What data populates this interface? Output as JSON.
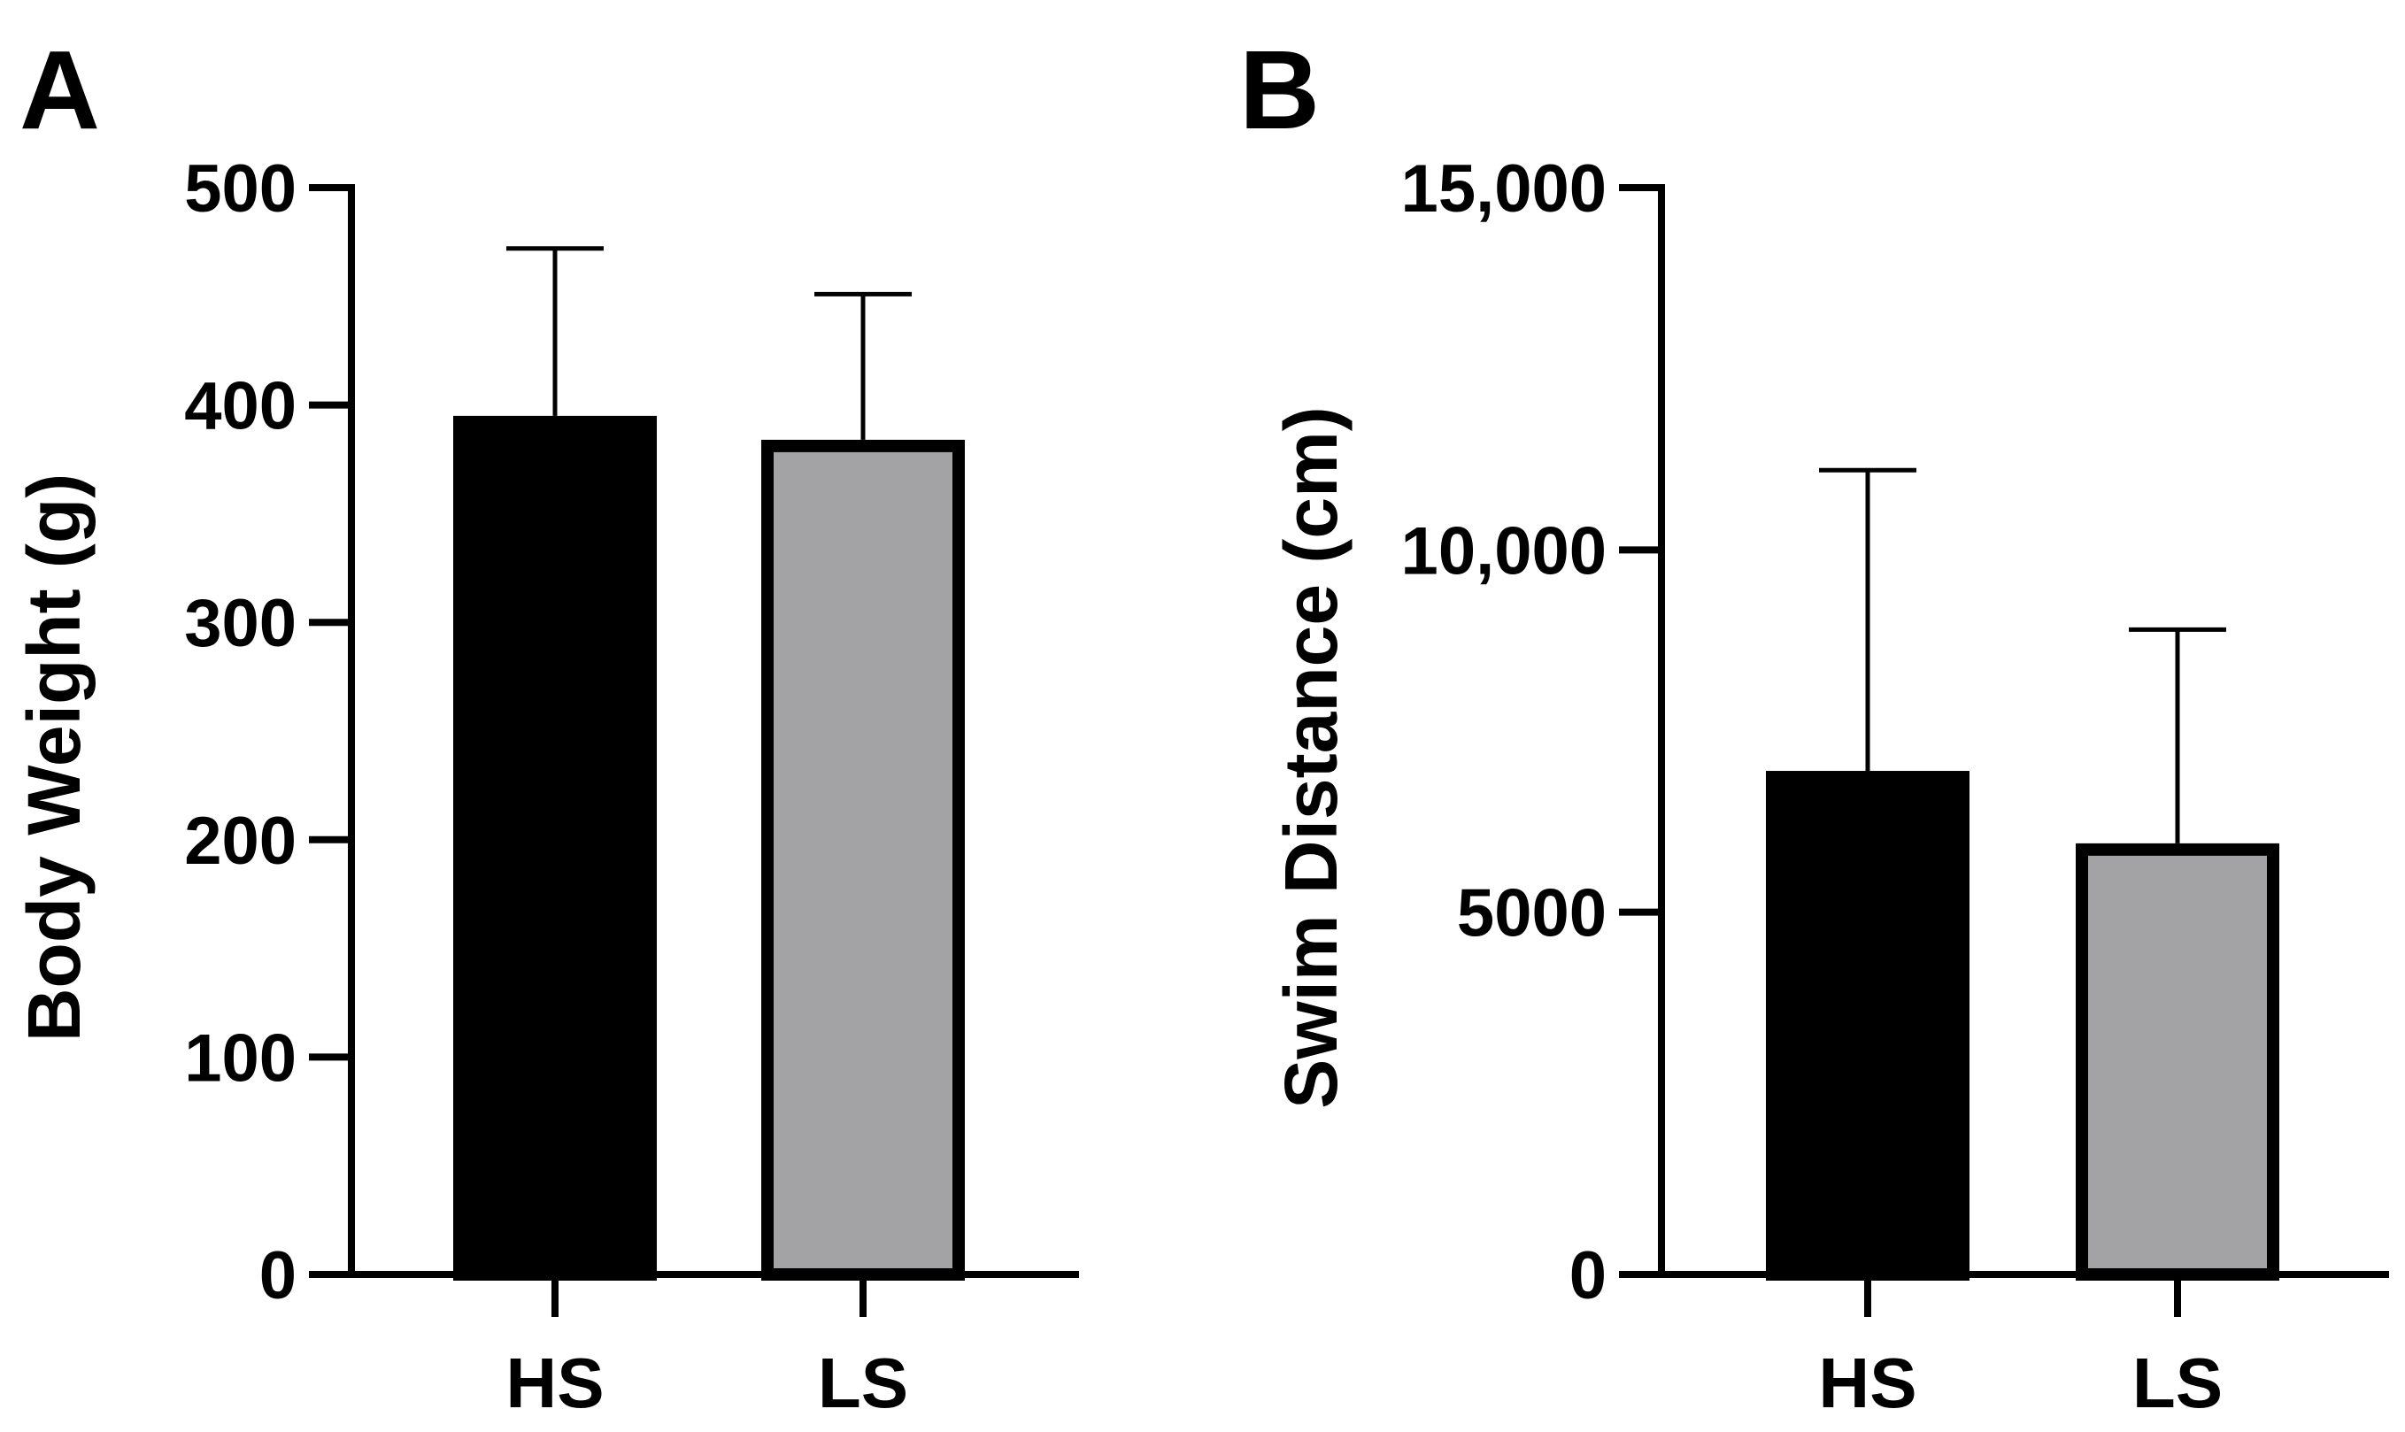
{
  "chart_data": [
    {
      "type": "bar",
      "panel_label": "A",
      "categories": [
        "HS",
        "LS"
      ],
      "values": [
        395,
        384
      ],
      "error_plus": [
        77,
        67
      ],
      "ylabel": "Body Weight (g)",
      "xlabel": "",
      "title": "",
      "ylim": [
        0,
        500
      ],
      "yticks": [
        0,
        100,
        200,
        300,
        400,
        500
      ],
      "ytick_labels": [
        "0",
        "100",
        "200",
        "300",
        "400",
        "500"
      ],
      "bar_colors": [
        "#000000",
        "#a3a3a6"
      ],
      "legend": "none",
      "grid": false
    },
    {
      "type": "bar",
      "panel_label": "B",
      "categories": [
        "HS",
        "LS"
      ],
      "values": [
        6950,
        5950
      ],
      "error_plus": [
        4150,
        2950
      ],
      "ylabel": "Swim Distance (cm)",
      "xlabel": "",
      "title": "",
      "ylim": [
        0,
        15000
      ],
      "yticks": [
        0,
        5000,
        10000,
        15000
      ],
      "ytick_labels": [
        "0",
        "5000",
        "10,000",
        "15,000"
      ],
      "bar_colors": [
        "#000000",
        "#a3a3a6"
      ],
      "legend": "none",
      "grid": false
    }
  ]
}
